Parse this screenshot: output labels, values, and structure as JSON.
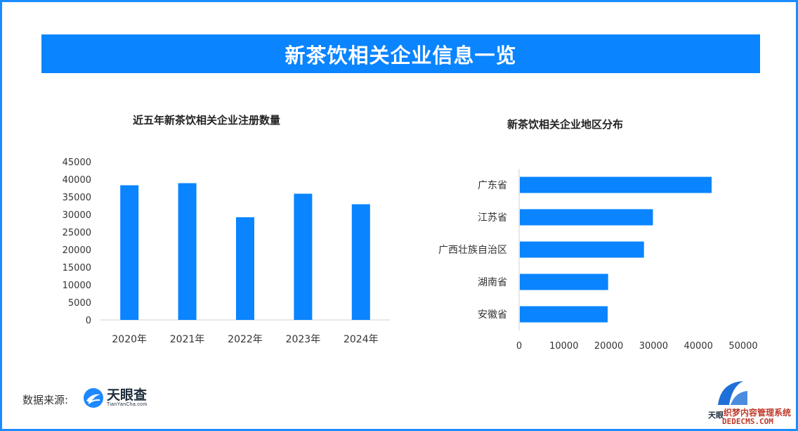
{
  "banner": {
    "title": "新茶饮相关企业信息一览"
  },
  "chart_data": [
    {
      "type": "bar",
      "title": "近五年新茶饮相关企业注册数量",
      "categories": [
        "2020年",
        "2021年",
        "2022年",
        "2023年",
        "2024年"
      ],
      "values": [
        38300,
        38900,
        29200,
        35900,
        32900
      ],
      "ylim": [
        0,
        45000
      ],
      "yticks": [
        0,
        5000,
        10000,
        15000,
        20000,
        25000,
        30000,
        35000,
        40000,
        45000
      ],
      "grid": false,
      "color": "#0a84ff"
    },
    {
      "type": "bar",
      "orientation": "horizontal",
      "title": "新茶饮相关企业地区分布",
      "categories": [
        "广东省",
        "江苏省",
        "广西壮族自治区",
        "湖南省",
        "安徽省"
      ],
      "values": [
        42800,
        29700,
        27700,
        19700,
        19600
      ],
      "xlim": [
        0,
        50000
      ],
      "xticks": [
        0,
        10000,
        20000,
        30000,
        40000,
        50000
      ],
      "grid": false,
      "color": "#0a84ff"
    }
  ],
  "footer": {
    "source_label": "数据来源:",
    "logo_cn": "天眼查",
    "logo_en": "TianYanCha.com",
    "corner_brand": "天眼",
    "watermark_cn": "织梦内容管理系统",
    "watermark_en": "DEDECMS.COM"
  },
  "colors": {
    "accent": "#0a84ff",
    "frame": "#1a8cff"
  }
}
